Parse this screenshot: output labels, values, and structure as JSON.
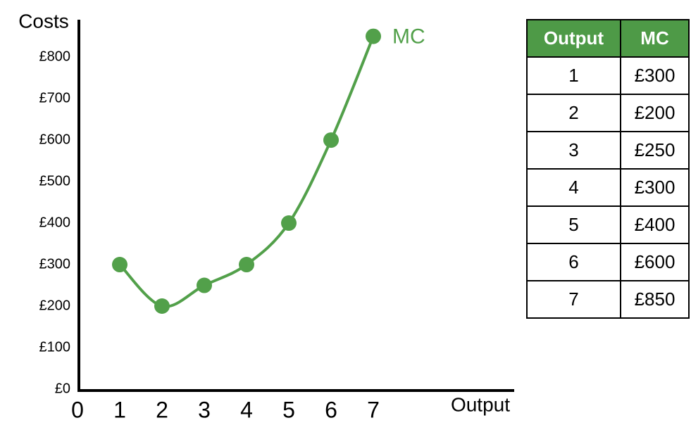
{
  "chart_data": {
    "type": "line",
    "y_label": "Costs",
    "x_label": "Output",
    "x": [
      1,
      2,
      3,
      4,
      5,
      6,
      7
    ],
    "series": [
      {
        "name": "MC",
        "color": "#52a04a",
        "values": [
          300,
          200,
          250,
          300,
          400,
          600,
          850
        ]
      }
    ],
    "xlim": [
      0,
      10.3
    ],
    "xticks": [
      0,
      1,
      2,
      3,
      4,
      5,
      6,
      7
    ],
    "ylim": [
      0,
      890
    ],
    "yticks": [
      {
        "value": 0,
        "label": "£0"
      },
      {
        "value": 100,
        "label": "£100"
      },
      {
        "value": 200,
        "label": "£200"
      },
      {
        "value": 300,
        "label": "£300"
      },
      {
        "value": 400,
        "label": "£400"
      },
      {
        "value": 500,
        "label": "£500"
      },
      {
        "value": 600,
        "label": "£600"
      },
      {
        "value": 700,
        "label": "£700"
      },
      {
        "value": 800,
        "label": "£800"
      }
    ],
    "grid": false,
    "smooth": true
  },
  "table": {
    "headers": [
      "Output",
      "MC"
    ],
    "header_color": "#4e9a47",
    "rows": [
      [
        "1",
        "£300"
      ],
      [
        "2",
        "£200"
      ],
      [
        "3",
        "£250"
      ],
      [
        "4",
        "£300"
      ],
      [
        "5",
        "£400"
      ],
      [
        "6",
        "£600"
      ],
      [
        "7",
        "£850"
      ]
    ]
  }
}
